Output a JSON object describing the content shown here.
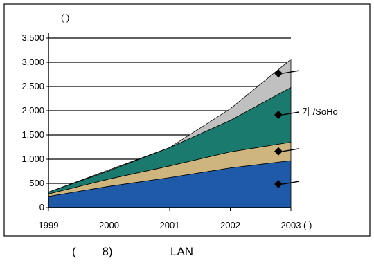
{
  "chart_data": {
    "type": "area",
    "title": "(          )",
    "unit_label": "(      )",
    "caption_number": "(        8)",
    "caption_title": "LAN",
    "x": [
      "1999",
      "2000",
      "2001",
      "2002",
      "2003"
    ],
    "ylim": [
      0,
      3500
    ],
    "yticks": [
      "0",
      "500",
      "1,000",
      "1,500",
      "2,000",
      "2,500",
      "3,000",
      "3,500"
    ],
    "stacked": true,
    "grid": "horizontal",
    "series": [
      {
        "name": "",
        "color": "#1f5aa8",
        "values": [
          230,
          440,
          620,
          820,
          970
        ]
      },
      {
        "name": "",
        "color": "#cdb57d",
        "values": [
          50,
          150,
          240,
          330,
          380
        ]
      },
      {
        "name": "가   /SoHo",
        "color": "#1a7a6e",
        "values": [
          40,
          170,
          380,
          650,
          1130
        ]
      },
      {
        "name": "",
        "color": "#c0c0c0",
        "values": [
          0,
          20,
          0,
          240,
          580
        ]
      }
    ],
    "annotations": [
      {
        "series": 3,
        "label": ""
      },
      {
        "series": 2,
        "label": "가   /SoHo"
      },
      {
        "series": 1,
        "label": ""
      },
      {
        "series": 0,
        "label": ""
      }
    ]
  }
}
